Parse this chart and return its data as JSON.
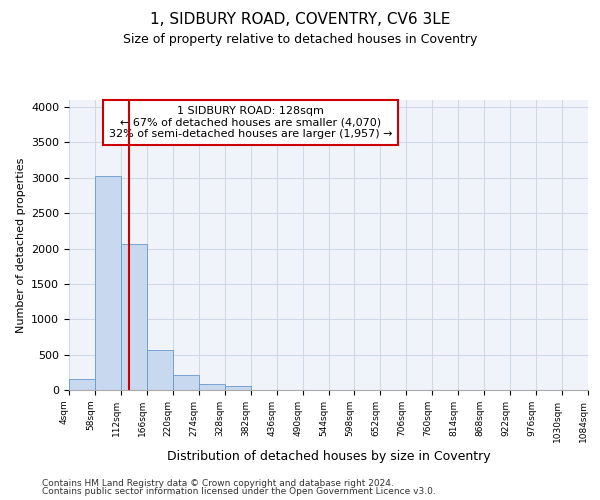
{
  "title1": "1, SIDBURY ROAD, COVENTRY, CV6 3LE",
  "title2": "Size of property relative to detached houses in Coventry",
  "xlabel": "Distribution of detached houses by size in Coventry",
  "ylabel": "Number of detached properties",
  "annotation_title": "1 SIDBURY ROAD: 128sqm",
  "annotation_line1": "← 67% of detached houses are smaller (4,070)",
  "annotation_line2": "32% of semi-detached houses are larger (1,957) →",
  "property_size_sqm": 128,
  "bin_edges": [
    4,
    58,
    112,
    166,
    220,
    274,
    328,
    382,
    436,
    490,
    544,
    598,
    652,
    706,
    760,
    814,
    868,
    922,
    976,
    1030,
    1084
  ],
  "bar_values": [
    150,
    3030,
    2070,
    560,
    210,
    80,
    60,
    0,
    0,
    0,
    0,
    0,
    0,
    0,
    0,
    0,
    0,
    0,
    0,
    0
  ],
  "bar_color": "#c8d8ee",
  "bar_edge_color": "#6699cc",
  "vline_color": "#cc0000",
  "vline_x": 128,
  "annotation_box_color": "#cc0000",
  "grid_color": "#d0d8e8",
  "bg_color": "#f0f4fa",
  "ylim": [
    0,
    4100
  ],
  "footer1": "Contains HM Land Registry data © Crown copyright and database right 2024.",
  "footer2": "Contains public sector information licensed under the Open Government Licence v3.0."
}
